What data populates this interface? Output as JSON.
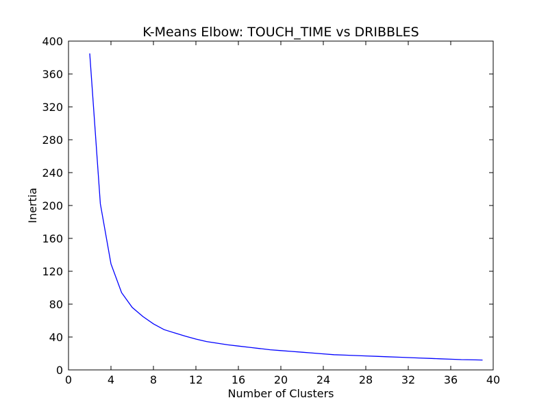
{
  "chart_data": {
    "type": "line",
    "title": "K-Means Elbow: TOUCH_TIME vs DRIBBLES",
    "xlabel": "Number of Clusters",
    "ylabel": "Inertia",
    "xlim": [
      0,
      40
    ],
    "ylim": [
      0,
      400
    ],
    "xticks": [
      0,
      4,
      8,
      12,
      16,
      20,
      24,
      28,
      32,
      36,
      40
    ],
    "yticks": [
      0,
      40,
      80,
      120,
      160,
      200,
      240,
      280,
      320,
      360,
      400
    ],
    "grid": false,
    "line_color": "#0000ff",
    "series": [
      {
        "x": [
          2,
          3,
          4,
          5,
          6,
          7,
          8,
          9,
          10,
          11,
          12,
          13,
          14,
          15,
          16,
          17,
          18,
          19,
          20,
          21,
          22,
          23,
          24,
          25,
          26,
          27,
          28,
          29,
          30,
          31,
          32,
          33,
          34,
          35,
          36,
          37,
          38,
          39
        ],
        "values": [
          385,
          202,
          129,
          94,
          76,
          65,
          56,
          49,
          45,
          41,
          37.5,
          34.5,
          32.5,
          30.5,
          29,
          27.5,
          26,
          24.5,
          23.5,
          22.5,
          21.5,
          20.5,
          19.5,
          18.5,
          18,
          17.5,
          17,
          16.5,
          16,
          15.5,
          15,
          14.5,
          14,
          13.5,
          13,
          12.5,
          12.3,
          12
        ]
      }
    ]
  }
}
